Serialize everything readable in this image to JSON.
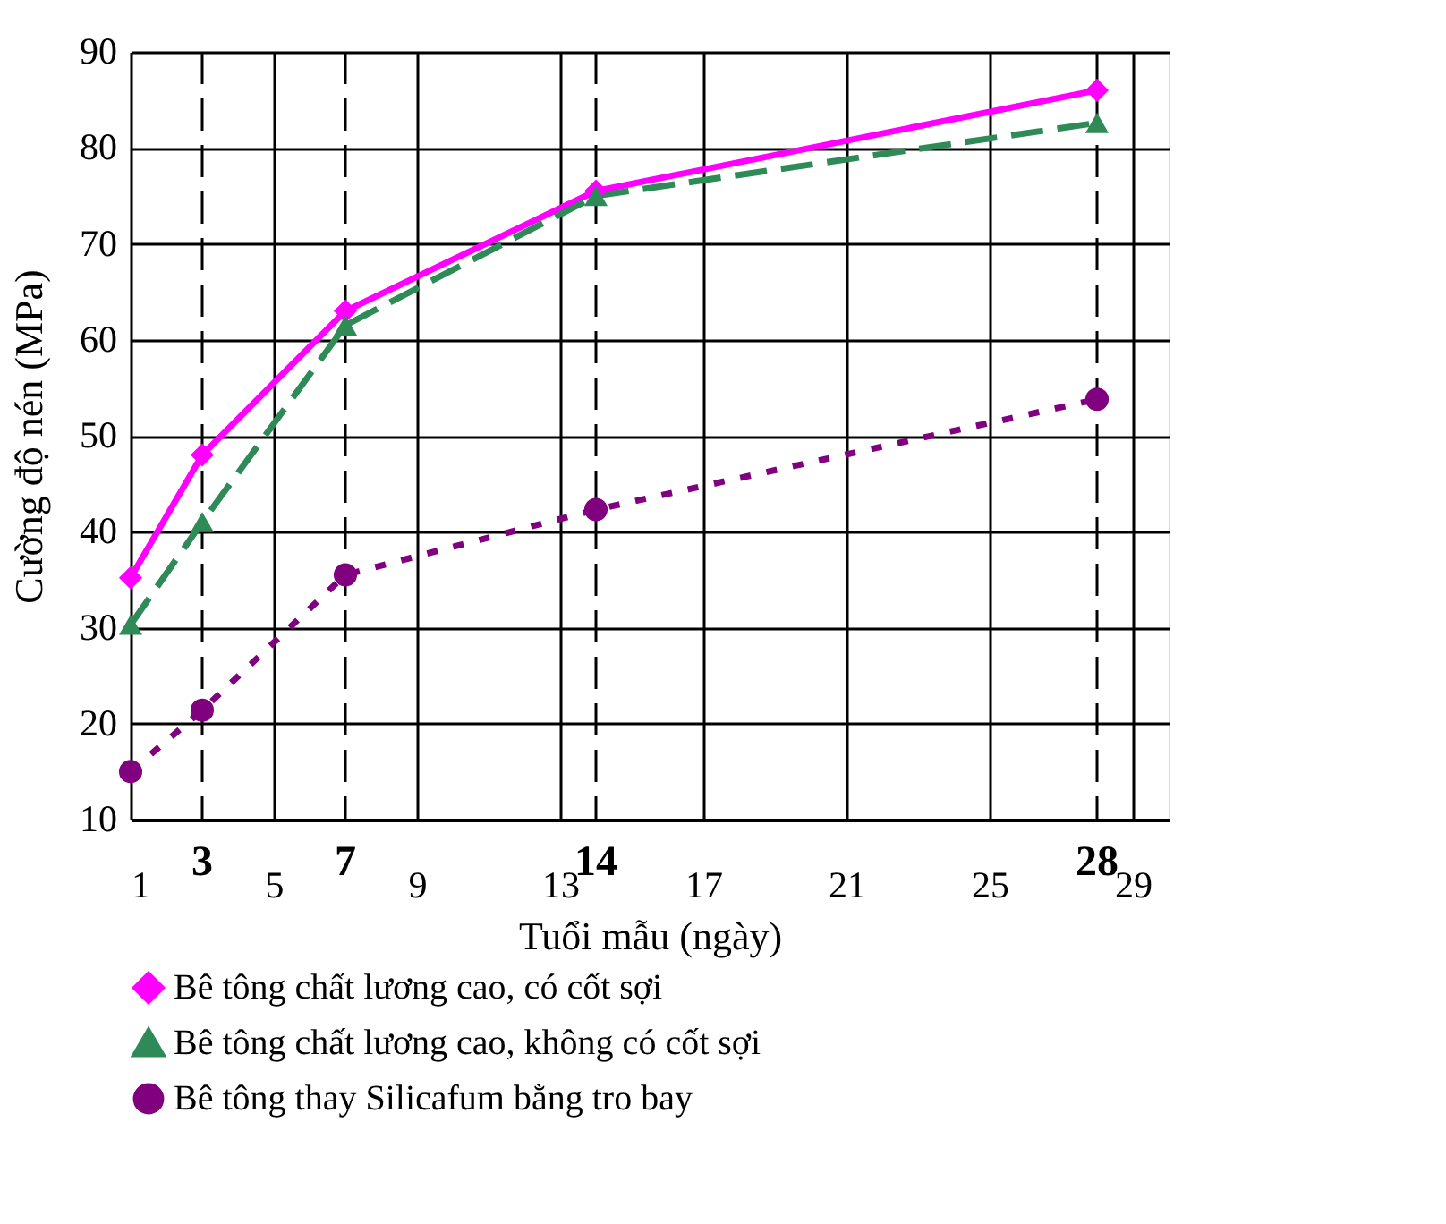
{
  "chart_data": {
    "type": "line",
    "xlabel": "Tuổi mẫu (ngày)",
    "ylabel": "Cường độ nén (MPa)",
    "xlim": [
      1,
      30
    ],
    "xticks": [
      1,
      5,
      9,
      13,
      17,
      21,
      25,
      29
    ],
    "ylim": [
      10,
      90
    ],
    "yticks": [
      10,
      20,
      30,
      40,
      50,
      60,
      70,
      80,
      90
    ],
    "grid": true,
    "legend": "bottom",
    "x": [
      1,
      3,
      7,
      14,
      28
    ],
    "series": [
      {
        "name": "Bê tông chất lương cao, có cốt sợi",
        "color": "#ff00ff",
        "marker": "diamond",
        "line_style": "solid",
        "values": [
          35.2,
          48,
          63,
          75.5,
          86
        ]
      },
      {
        "name": "Bê tông chất lương cao, không có cốt sợi",
        "color": "#2e8b57",
        "marker": "triangle",
        "line_style": "dashed",
        "values": [
          30.3,
          41,
          61.5,
          75,
          82.6
        ]
      },
      {
        "name": "Bê tông thay Silicafum bằng tro bay",
        "color": "#800080",
        "marker": "circle",
        "line_style": "dotted",
        "values": [
          15,
          21.4,
          35.5,
          42.3,
          53.8
        ]
      }
    ],
    "ref_lines": [
      {
        "axis": "x",
        "value": 3,
        "label": "3",
        "color": "#000000",
        "line_style": "dashed"
      },
      {
        "axis": "x",
        "value": 7,
        "label": "7",
        "color": "#000000",
        "line_style": "dashed"
      },
      {
        "axis": "x",
        "value": 14,
        "label": "14",
        "color": "#000000",
        "line_style": "dashed"
      },
      {
        "axis": "x",
        "value": 28,
        "label": "28",
        "color": "#000000",
        "line_style": "dashed"
      }
    ]
  }
}
